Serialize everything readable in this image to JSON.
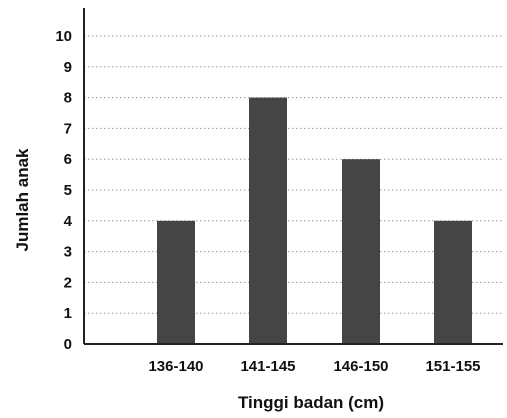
{
  "chart_data": {
    "type": "bar",
    "categories": [
      "136-140",
      "141-145",
      "146-150",
      "151-155"
    ],
    "values": [
      4,
      8,
      6,
      4
    ],
    "title": "",
    "xlabel": "Tinggi badan (cm)",
    "ylabel": "Jumlah anak",
    "ylim": [
      0,
      10
    ],
    "yticks": [
      0,
      1,
      2,
      3,
      4,
      5,
      6,
      7,
      8,
      9,
      10
    ],
    "grid": true,
    "grid_style": "dotted",
    "legend": "none",
    "bar_color": "#454545",
    "axis_color": "#222222",
    "grid_color": "#999999"
  }
}
